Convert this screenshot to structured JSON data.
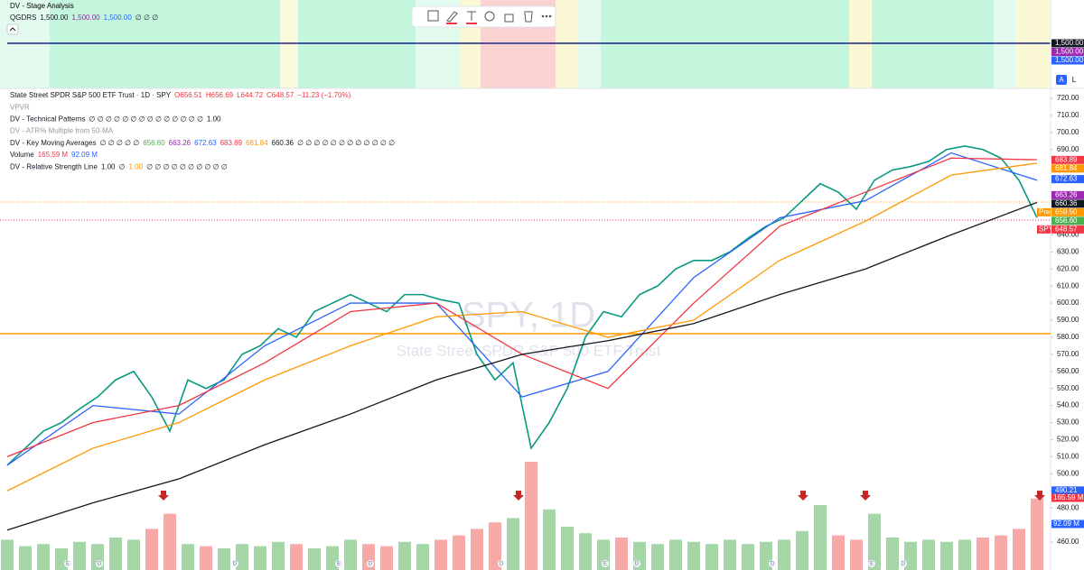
{
  "top_pane": {
    "title": "DV - Stage Analysis",
    "legend": [
      {
        "text": "QGDRS",
        "color": "#131722"
      },
      {
        "text": "1,500.00",
        "color": "#131722"
      },
      {
        "text": "1,500.00",
        "color": "#9c27b0"
      },
      {
        "text": "1,500.00",
        "color": "#2962ff"
      },
      {
        "text": "∅ ∅ ∅",
        "color": "#131722"
      }
    ],
    "axis_tags": [
      {
        "label": "1,500.00",
        "color": "#131722"
      },
      {
        "label": "1,500.00",
        "color": "#9c27b0"
      },
      {
        "label": "1,500.00",
        "color": "#2962ff"
      }
    ],
    "scale_buttons": [
      "A",
      "L"
    ]
  },
  "main_pane": {
    "legend_rows": [
      [
        {
          "text": "State Street SPDR S&P 500 ETF Trust · 1D · SPY",
          "color": "#131722"
        },
        {
          "text": "O656.51",
          "color": "#f23645"
        },
        {
          "text": "H656.69",
          "color": "#f23645"
        },
        {
          "text": "L644.72",
          "color": "#f23645"
        },
        {
          "text": "C648.57",
          "color": "#f23645"
        },
        {
          "text": "−11.23 (−1.70%)",
          "color": "#f23645"
        }
      ],
      [
        {
          "text": "VPVR",
          "color": "#9598a1"
        }
      ],
      [
        {
          "text": "DV - Technical Patterns",
          "color": "#131722"
        },
        {
          "text": "∅ ∅ ∅ ∅ ∅ ∅ ∅ ∅ ∅ ∅ ∅ ∅ ∅ ∅",
          "color": "#131722"
        },
        {
          "text": "1.00",
          "color": "#131722"
        }
      ],
      [
        {
          "text": "DV - ATR% Multiple from 50-MA",
          "color": "#9598a1"
        }
      ],
      [
        {
          "text": "DV - Key Moving Averages",
          "color": "#131722"
        },
        {
          "text": "∅ ∅ ∅ ∅ ∅",
          "color": "#131722"
        },
        {
          "text": "656.60",
          "color": "#4caf50"
        },
        {
          "text": "663.26",
          "color": "#9c27b0"
        },
        {
          "text": "672.63",
          "color": "#2962ff"
        },
        {
          "text": "683.89",
          "color": "#f23645"
        },
        {
          "text": "681.84",
          "color": "#ff9800"
        },
        {
          "text": "660.36",
          "color": "#131722"
        },
        {
          "text": "∅ ∅ ∅ ∅ ∅ ∅ ∅ ∅ ∅ ∅ ∅ ∅",
          "color": "#131722"
        }
      ],
      [
        {
          "text": "Volume",
          "color": "#131722"
        },
        {
          "text": "165.59 M",
          "color": "#f23645"
        },
        {
          "text": "92.09 M",
          "color": "#2962ff"
        }
      ],
      [
        {
          "text": "DV - Relative Strength Line",
          "color": "#131722"
        },
        {
          "text": "1.00",
          "color": "#131722"
        },
        {
          "text": "∅",
          "color": "#131722"
        },
        {
          "text": "1.00",
          "color": "#ff9800"
        },
        {
          "text": "∅ ∅ ∅ ∅ ∅ ∅ ∅ ∅ ∅ ∅",
          "color": "#131722"
        }
      ]
    ],
    "watermark": {
      "symbol": "SPY, 1D",
      "name": "State Street SPDR S&P 500 ETF Trust"
    },
    "ylim": [
      460,
      720
    ],
    "yticks": [
      {
        "value": 720,
        "label": "720.00"
      },
      {
        "value": 710,
        "label": "710.00"
      },
      {
        "value": 700,
        "label": "700.00"
      },
      {
        "value": 690,
        "label": "690.00"
      },
      {
        "value": 640,
        "label": "640.00"
      },
      {
        "value": 630,
        "label": "630.00"
      },
      {
        "value": 620,
        "label": "620.00"
      },
      {
        "value": 610,
        "label": "610.00"
      },
      {
        "value": 600,
        "label": "600.00"
      },
      {
        "value": 590,
        "label": "590.00"
      },
      {
        "value": 580,
        "label": "580.00"
      },
      {
        "value": 570,
        "label": "570.00"
      },
      {
        "value": 560,
        "label": "560.00"
      },
      {
        "value": 550,
        "label": "550.00"
      },
      {
        "value": 540,
        "label": "540.00"
      },
      {
        "value": 530,
        "label": "530.00"
      },
      {
        "value": 520,
        "label": "520.00"
      },
      {
        "value": 510,
        "label": "510.00"
      },
      {
        "value": 500,
        "label": "500.00"
      },
      {
        "value": 490,
        "label": "490.00"
      },
      {
        "value": 480,
        "label": "480.00"
      },
      {
        "value": 470,
        "label": "470.00"
      },
      {
        "value": 460,
        "label": "460.00"
      }
    ],
    "price_tags": [
      {
        "value": 683.89,
        "label": "683.89",
        "color": "#f23645"
      },
      {
        "value": 681.84,
        "label": "681.84",
        "color": "#ff9800"
      },
      {
        "value": 672.63,
        "label": "672.63",
        "color": "#2962ff"
      },
      {
        "value": 663.26,
        "label": "663.26",
        "color": "#9c27b0"
      },
      {
        "value": 660.36,
        "label": "660.36",
        "color": "#131722"
      },
      {
        "value": 659.5,
        "label": "659.50",
        "tag": "Pre",
        "color": "#ff9800"
      },
      {
        "value": 656.6,
        "label": "656.60",
        "color": "#4caf50"
      },
      {
        "value": 648.57,
        "label": "648.57",
        "tag": "SPY",
        "color": "#f23645"
      },
      {
        "value": 490.21,
        "label": "490.21",
        "color": "#2962ff"
      }
    ],
    "volume_tags": [
      {
        "label": "165.59 M",
        "color": "#f23645"
      },
      {
        "label": "92.09 M",
        "color": "#2962ff"
      }
    ],
    "series": [
      {
        "name": "price",
        "color": "#089981",
        "values": [
          505,
          515,
          525,
          530,
          538,
          545,
          555,
          560,
          545,
          525,
          555,
          550,
          555,
          570,
          575,
          585,
          580,
          595,
          600,
          605,
          600,
          595,
          605,
          605,
          602,
          600,
          570,
          555,
          565,
          515,
          530,
          550,
          580,
          595,
          592,
          605,
          610,
          620,
          625,
          625,
          630,
          638,
          645,
          650,
          660,
          670,
          665,
          655,
          672,
          678,
          680,
          683,
          690,
          692,
          690,
          685,
          672,
          650
        ]
      },
      {
        "name": "ma10",
        "color": "#2962ff",
        "values": [
          505,
          540,
          535,
          575,
          600,
          600,
          545,
          560,
          615,
          650,
          660,
          688,
          672
        ]
      },
      {
        "name": "ma21",
        "color": "#f23645",
        "values": [
          510,
          530,
          540,
          565,
          595,
          600,
          570,
          550,
          600,
          645,
          665,
          685,
          684
        ]
      },
      {
        "name": "ma50",
        "color": "#ff9800",
        "values": [
          490,
          515,
          530,
          555,
          575,
          592,
          595,
          580,
          590,
          625,
          648,
          675,
          682
        ]
      },
      {
        "name": "ma200",
        "color": "#131722",
        "values": [
          467,
          483,
          497,
          517,
          535,
          555,
          570,
          578,
          588,
          605,
          620,
          640,
          659
        ]
      }
    ],
    "volume": [
      70,
      55,
      60,
      50,
      65,
      60,
      75,
      70,
      95,
      130,
      60,
      55,
      50,
      60,
      55,
      65,
      60,
      50,
      55,
      70,
      60,
      55,
      65,
      60,
      70,
      80,
      95,
      110,
      120,
      250,
      140,
      100,
      85,
      70,
      75,
      65,
      60,
      70,
      65,
      60,
      70,
      60,
      65,
      70,
      90,
      150,
      80,
      70,
      130,
      75,
      65,
      70,
      65,
      70,
      75,
      80,
      95,
      165
    ],
    "time_markers": [
      "E",
      "D",
      "D",
      "E",
      "D",
      "D",
      "E",
      "D",
      "D",
      "E",
      "D"
    ]
  }
}
